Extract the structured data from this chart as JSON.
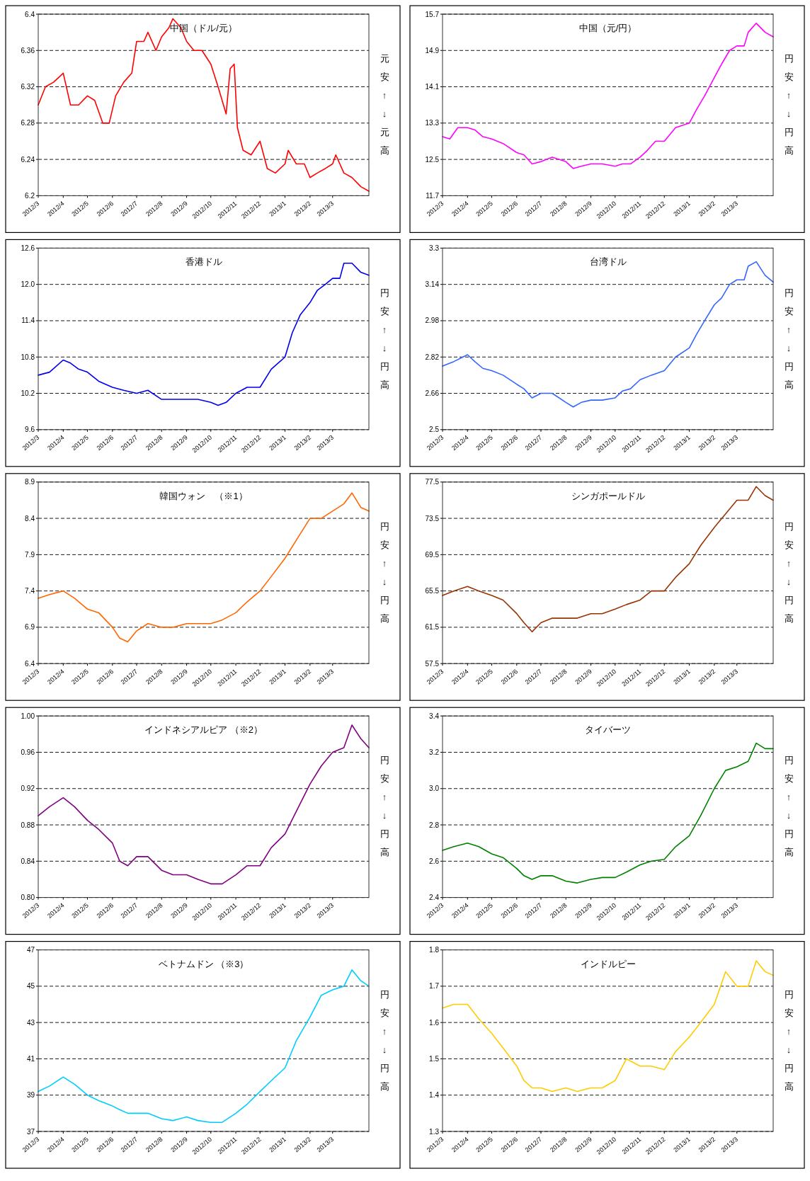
{
  "chart_data": [
    {
      "type": "line",
      "title": "中国（ドル/元）",
      "annotations": [
        "元安↑↓元高"
      ],
      "grid": "y",
      "xlim": [
        "2012-03-01",
        "2013-04-15"
      ],
      "ylim": [
        6.2,
        6.4
      ],
      "yticks": [
        6.2,
        6.24,
        6.28,
        6.32,
        6.36,
        6.4
      ],
      "xticks": [
        {
          "value": "2012-03-01",
          "label": "2012/3"
        },
        {
          "value": "2012-04-01",
          "label": "2012/4"
        },
        {
          "value": "2012-05-01",
          "label": "2012/5"
        },
        {
          "value": "2012-06-01",
          "label": "2012/6"
        },
        {
          "value": "2012-07-01",
          "label": "2012/7"
        },
        {
          "value": "2012-08-01",
          "label": "2012/8"
        },
        {
          "value": "2012-09-01",
          "label": "2012/9"
        },
        {
          "value": "2012-10-01",
          "label": "2012/10"
        },
        {
          "value": "2012-11-01",
          "label": "2012/11"
        },
        {
          "value": "2012-12-01",
          "label": "2012/12"
        },
        {
          "value": "2013-01-01",
          "label": "2013/1"
        },
        {
          "value": "2013-02-01",
          "label": "2013/2"
        },
        {
          "value": "2013-03-01",
          "label": "2013/3"
        }
      ],
      "x": [
        "2012-03-01",
        "2012-03-10",
        "2012-03-20",
        "2012-04-01",
        "2012-04-10",
        "2012-04-20",
        "2012-05-01",
        "2012-05-10",
        "2012-05-20",
        "2012-05-28",
        "2012-06-05",
        "2012-06-15",
        "2012-06-25",
        "2012-07-01",
        "2012-07-10",
        "2012-07-15",
        "2012-07-25",
        "2012-08-01",
        "2012-08-10",
        "2012-08-15",
        "2012-08-25",
        "2012-09-01",
        "2012-09-10",
        "2012-09-20",
        "2012-10-01",
        "2012-10-10",
        "2012-10-20",
        "2012-10-25",
        "2012-10-30",
        "2012-11-03",
        "2012-11-10",
        "2012-11-20",
        "2012-12-01",
        "2012-12-10",
        "2012-12-20",
        "2013-01-01",
        "2013-01-05",
        "2013-01-15",
        "2013-01-25",
        "2013-02-01",
        "2013-02-10",
        "2013-02-20",
        "2013-03-01",
        "2013-03-05",
        "2013-03-15",
        "2013-03-25",
        "2013-04-05",
        "2013-04-15"
      ],
      "series": [
        {
          "color": "#ff0000",
          "values": [
            6.3,
            6.32,
            6.325,
            6.335,
            6.3,
            6.3,
            6.31,
            6.305,
            6.28,
            6.28,
            6.31,
            6.325,
            6.335,
            6.37,
            6.37,
            6.38,
            6.36,
            6.375,
            6.385,
            6.395,
            6.385,
            6.37,
            6.36,
            6.36,
            6.345,
            6.32,
            6.29,
            6.34,
            6.345,
            6.275,
            6.25,
            6.245,
            6.26,
            6.23,
            6.225,
            6.235,
            6.25,
            6.235,
            6.235,
            6.22,
            6.225,
            6.23,
            6.235,
            6.245,
            6.225,
            6.22,
            6.21,
            6.205
          ]
        }
      ]
    },
    {
      "type": "line",
      "title": "中国（元/円）",
      "annotations": [
        "円安↑↓円高"
      ],
      "grid": "y",
      "xlim": [
        "2012-03-01",
        "2013-04-15"
      ],
      "ylim": [
        11.7,
        15.7
      ],
      "yticks": [
        11.7,
        12.5,
        13.3,
        14.1,
        14.9,
        15.7
      ],
      "xticks": [
        {
          "value": "2012-03-01",
          "label": "2012/3"
        },
        {
          "value": "2012-04-01",
          "label": "2012/4"
        },
        {
          "value": "2012-05-01",
          "label": "2012/5"
        },
        {
          "value": "2012-06-01",
          "label": "2012/6"
        },
        {
          "value": "2012-07-01",
          "label": "2012/7"
        },
        {
          "value": "2012-08-01",
          "label": "2012/8"
        },
        {
          "value": "2012-09-01",
          "label": "2012/9"
        },
        {
          "value": "2012-10-01",
          "label": "2012/10"
        },
        {
          "value": "2012-11-01",
          "label": "2012/11"
        },
        {
          "value": "2012-12-01",
          "label": "2012/12"
        },
        {
          "value": "2013-01-01",
          "label": "2013/1"
        },
        {
          "value": "2013-02-01",
          "label": "2013/2"
        },
        {
          "value": "2013-03-01",
          "label": "2013/3"
        }
      ],
      "x": [
        "2012-03-01",
        "2012-03-10",
        "2012-03-20",
        "2012-04-01",
        "2012-04-10",
        "2012-04-20",
        "2012-05-01",
        "2012-05-15",
        "2012-06-01",
        "2012-06-10",
        "2012-06-20",
        "2012-07-01",
        "2012-07-15",
        "2012-08-01",
        "2012-08-10",
        "2012-08-20",
        "2012-09-01",
        "2012-09-15",
        "2012-10-01",
        "2012-10-10",
        "2012-10-20",
        "2012-11-01",
        "2012-11-10",
        "2012-11-20",
        "2012-12-01",
        "2012-12-15",
        "2013-01-01",
        "2013-01-10",
        "2013-01-20",
        "2013-02-01",
        "2013-02-10",
        "2013-02-20",
        "2013-03-01",
        "2013-03-10",
        "2013-03-15",
        "2013-03-25",
        "2013-04-05",
        "2013-04-15"
      ],
      "series": [
        {
          "color": "#ff00ff",
          "values": [
            13.0,
            12.95,
            13.2,
            13.2,
            13.15,
            13.0,
            12.95,
            12.85,
            12.65,
            12.6,
            12.4,
            12.45,
            12.55,
            12.45,
            12.3,
            12.35,
            12.4,
            12.4,
            12.35,
            12.4,
            12.4,
            12.55,
            12.7,
            12.9,
            12.9,
            13.2,
            13.3,
            13.6,
            13.9,
            14.3,
            14.6,
            14.9,
            15.0,
            15.0,
            15.3,
            15.5,
            15.3,
            15.2
          ]
        }
      ]
    },
    {
      "type": "line",
      "title": "香港ドル",
      "annotations": [
        "円安↑↓円高"
      ],
      "grid": "y",
      "xlim": [
        "2012-03-01",
        "2013-04-15"
      ],
      "ylim": [
        9.6,
        12.6
      ],
      "yticks": [
        9.6,
        10.2,
        10.8,
        11.4,
        {
          "value": 12,
          "label": "12.0"
        },
        12.6
      ],
      "xticks": [
        {
          "value": "2012-03-01",
          "label": "2012/3"
        },
        {
          "value": "2012-04-01",
          "label": "2012/4"
        },
        {
          "value": "2012-05-01",
          "label": "2012/5"
        },
        {
          "value": "2012-06-01",
          "label": "2012/6"
        },
        {
          "value": "2012-07-01",
          "label": "2012/7"
        },
        {
          "value": "2012-08-01",
          "label": "2012/8"
        },
        {
          "value": "2012-09-01",
          "label": "2012/9"
        },
        {
          "value": "2012-10-01",
          "label": "2012/10"
        },
        {
          "value": "2012-11-01",
          "label": "2012/11"
        },
        {
          "value": "2012-12-01",
          "label": "2012/12"
        },
        {
          "value": "2013-01-01",
          "label": "2013/1"
        },
        {
          "value": "2013-02-01",
          "label": "2013/2"
        },
        {
          "value": "2013-03-01",
          "label": "2013/3"
        }
      ],
      "x": [
        "2012-03-01",
        "2012-03-15",
        "2012-04-01",
        "2012-04-10",
        "2012-04-20",
        "2012-05-01",
        "2012-05-15",
        "2012-06-01",
        "2012-06-15",
        "2012-07-01",
        "2012-07-15",
        "2012-08-01",
        "2012-08-15",
        "2012-09-01",
        "2012-09-15",
        "2012-10-01",
        "2012-10-10",
        "2012-10-20",
        "2012-11-01",
        "2012-11-15",
        "2012-12-01",
        "2012-12-15",
        "2013-01-01",
        "2013-01-10",
        "2013-01-20",
        "2013-02-01",
        "2013-02-10",
        "2013-02-20",
        "2013-03-01",
        "2013-03-10",
        "2013-03-15",
        "2013-03-25",
        "2013-04-05",
        "2013-04-15"
      ],
      "series": [
        {
          "color": "#0000ee",
          "values": [
            10.5,
            10.55,
            10.75,
            10.7,
            10.6,
            10.55,
            10.4,
            10.3,
            10.25,
            10.2,
            10.25,
            10.1,
            10.1,
            10.1,
            10.1,
            10.05,
            10.0,
            10.05,
            10.2,
            10.3,
            10.3,
            10.6,
            10.8,
            11.2,
            11.5,
            11.7,
            11.9,
            12.0,
            12.1,
            12.1,
            12.35,
            12.35,
            12.2,
            12.15
          ]
        }
      ]
    },
    {
      "type": "line",
      "title": "台湾ドル",
      "annotations": [
        "円安↑↓円高"
      ],
      "grid": "y",
      "xlim": [
        "2012-03-01",
        "2013-04-15"
      ],
      "ylim": [
        2.5,
        3.3
      ],
      "yticks": [
        2.5,
        2.66,
        2.82,
        2.98,
        3.14,
        3.3
      ],
      "xticks": [
        {
          "value": "2012-03-01",
          "label": "2012/3"
        },
        {
          "value": "2012-04-01",
          "label": "2012/4"
        },
        {
          "value": "2012-05-01",
          "label": "2012/5"
        },
        {
          "value": "2012-06-01",
          "label": "2012/6"
        },
        {
          "value": "2012-07-01",
          "label": "2012/7"
        },
        {
          "value": "2012-08-01",
          "label": "2012/8"
        },
        {
          "value": "2012-09-01",
          "label": "2012/9"
        },
        {
          "value": "2012-10-01",
          "label": "2012/10"
        },
        {
          "value": "2012-11-01",
          "label": "2012/11"
        },
        {
          "value": "2012-12-01",
          "label": "2012/12"
        },
        {
          "value": "2013-01-01",
          "label": "2013/1"
        },
        {
          "value": "2013-02-01",
          "label": "2013/2"
        },
        {
          "value": "2013-03-01",
          "label": "2013/3"
        }
      ],
      "x": [
        "2012-03-01",
        "2012-03-15",
        "2012-04-01",
        "2012-04-10",
        "2012-04-20",
        "2012-05-01",
        "2012-05-15",
        "2012-06-01",
        "2012-06-10",
        "2012-06-20",
        "2012-07-01",
        "2012-07-15",
        "2012-08-01",
        "2012-08-10",
        "2012-08-20",
        "2012-09-01",
        "2012-09-15",
        "2012-10-01",
        "2012-10-10",
        "2012-10-20",
        "2012-11-01",
        "2012-11-15",
        "2012-12-01",
        "2012-12-15",
        "2013-01-01",
        "2013-01-10",
        "2013-01-20",
        "2013-02-01",
        "2013-02-10",
        "2013-02-20",
        "2013-03-01",
        "2013-03-10",
        "2013-03-15",
        "2013-03-25",
        "2013-04-05",
        "2013-04-15"
      ],
      "series": [
        {
          "color": "#3366ff",
          "values": [
            2.78,
            2.8,
            2.83,
            2.8,
            2.77,
            2.76,
            2.74,
            2.7,
            2.68,
            2.64,
            2.66,
            2.66,
            2.62,
            2.6,
            2.62,
            2.63,
            2.63,
            2.64,
            2.67,
            2.68,
            2.72,
            2.74,
            2.76,
            2.82,
            2.86,
            2.92,
            2.98,
            3.05,
            3.08,
            3.14,
            3.16,
            3.16,
            3.22,
            3.24,
            3.18,
            3.15
          ]
        }
      ]
    },
    {
      "type": "line",
      "title": "韓国ウォン　（※1）",
      "annotations": [
        "円安↑↓円高"
      ],
      "grid": "y",
      "xlim": [
        "2012-03-01",
        "2013-04-15"
      ],
      "ylim": [
        6.4,
        8.9
      ],
      "yticks": [
        6.4,
        6.9,
        7.4,
        7.9,
        8.4,
        8.9
      ],
      "xticks": [
        {
          "value": "2012-03-01",
          "label": "2012/3"
        },
        {
          "value": "2012-04-01",
          "label": "2012/4"
        },
        {
          "value": "2012-05-01",
          "label": "2012/5"
        },
        {
          "value": "2012-06-01",
          "label": "2012/6"
        },
        {
          "value": "2012-07-01",
          "label": "2012/7"
        },
        {
          "value": "2012-08-01",
          "label": "2012/8"
        },
        {
          "value": "2012-09-01",
          "label": "2012/9"
        },
        {
          "value": "2012-10-01",
          "label": "2012/10"
        },
        {
          "value": "2012-11-01",
          "label": "2012/11"
        },
        {
          "value": "2012-12-01",
          "label": "2012/12"
        },
        {
          "value": "2013-01-01",
          "label": "2013/1"
        },
        {
          "value": "2013-02-01",
          "label": "2013/2"
        },
        {
          "value": "2013-03-01",
          "label": "2013/3"
        }
      ],
      "x": [
        "2012-03-01",
        "2012-03-15",
        "2012-04-01",
        "2012-04-15",
        "2012-05-01",
        "2012-05-15",
        "2012-06-01",
        "2012-06-10",
        "2012-06-20",
        "2012-07-01",
        "2012-07-15",
        "2012-08-01",
        "2012-08-15",
        "2012-09-01",
        "2012-09-15",
        "2012-10-01",
        "2012-10-15",
        "2012-11-01",
        "2012-11-15",
        "2012-12-01",
        "2012-12-15",
        "2013-01-01",
        "2013-01-15",
        "2013-02-01",
        "2013-02-15",
        "2013-03-01",
        "2013-03-15",
        "2013-03-25",
        "2013-04-05",
        "2013-04-15"
      ],
      "series": [
        {
          "color": "#ff6600",
          "values": [
            7.3,
            7.35,
            7.4,
            7.3,
            7.15,
            7.1,
            6.9,
            6.75,
            6.7,
            6.85,
            6.95,
            6.9,
            6.9,
            6.95,
            6.95,
            6.95,
            7.0,
            7.1,
            7.25,
            7.4,
            7.6,
            7.85,
            8.1,
            8.4,
            8.4,
            8.5,
            8.6,
            8.75,
            8.55,
            8.5
          ]
        }
      ]
    },
    {
      "type": "line",
      "title": "シンガポールドル",
      "annotations": [
        "円安↑↓円高"
      ],
      "grid": "y",
      "xlim": [
        "2012-03-01",
        "2013-04-15"
      ],
      "ylim": [
        57.5,
        77.5
      ],
      "yticks": [
        57.5,
        61.5,
        65.5,
        69.5,
        73.5,
        77.5
      ],
      "xticks": [
        {
          "value": "2012-03-01",
          "label": "2012/3"
        },
        {
          "value": "2012-04-01",
          "label": "2012/4"
        },
        {
          "value": "2012-05-01",
          "label": "2012/5"
        },
        {
          "value": "2012-06-01",
          "label": "2012/6"
        },
        {
          "value": "2012-07-01",
          "label": "2012/7"
        },
        {
          "value": "2012-08-01",
          "label": "2012/8"
        },
        {
          "value": "2012-09-01",
          "label": "2012/9"
        },
        {
          "value": "2012-10-01",
          "label": "2012/10"
        },
        {
          "value": "2012-11-01",
          "label": "2012/11"
        },
        {
          "value": "2012-12-01",
          "label": "2012/12"
        },
        {
          "value": "2013-01-01",
          "label": "2013/1"
        },
        {
          "value": "2013-02-01",
          "label": "2013/2"
        },
        {
          "value": "2013-03-01",
          "label": "2013/3"
        }
      ],
      "x": [
        "2012-03-01",
        "2012-03-15",
        "2012-04-01",
        "2012-04-15",
        "2012-05-01",
        "2012-05-15",
        "2012-06-01",
        "2012-06-10",
        "2012-06-20",
        "2012-07-01",
        "2012-07-15",
        "2012-08-01",
        "2012-08-15",
        "2012-09-01",
        "2012-09-15",
        "2012-10-01",
        "2012-10-15",
        "2012-11-01",
        "2012-11-15",
        "2012-12-01",
        "2012-12-15",
        "2013-01-01",
        "2013-01-15",
        "2013-02-01",
        "2013-02-15",
        "2013-03-01",
        "2013-03-15",
        "2013-03-25",
        "2013-04-05",
        "2013-04-15"
      ],
      "series": [
        {
          "color": "#993300",
          "values": [
            65.0,
            65.5,
            66.0,
            65.5,
            65.0,
            64.5,
            63.0,
            62.0,
            61.0,
            62.0,
            62.5,
            62.5,
            62.5,
            63.0,
            63.0,
            63.5,
            64.0,
            64.5,
            65.5,
            65.5,
            67.0,
            68.5,
            70.5,
            72.5,
            74.0,
            75.5,
            75.5,
            77.0,
            76.0,
            75.5
          ]
        }
      ]
    },
    {
      "type": "line",
      "title": "インドネシアルピア （※2）",
      "annotations": [
        "円安↑↓円高"
      ],
      "grid": "y",
      "xlim": [
        "2012-03-01",
        "2013-04-15"
      ],
      "ylim": [
        0.8,
        1.0
      ],
      "yticks": [
        {
          "value": 0.8,
          "label": "0.80"
        },
        0.84,
        0.88,
        0.92,
        0.96,
        {
          "value": 1,
          "label": "1.00"
        }
      ],
      "xticks": [
        {
          "value": "2012-03-01",
          "label": "2012/3"
        },
        {
          "value": "2012-04-01",
          "label": "2012/4"
        },
        {
          "value": "2012-05-01",
          "label": "2012/5"
        },
        {
          "value": "2012-06-01",
          "label": "2012/6"
        },
        {
          "value": "2012-07-01",
          "label": "2012/7"
        },
        {
          "value": "2012-08-01",
          "label": "2012/8"
        },
        {
          "value": "2012-09-01",
          "label": "2012/9"
        },
        {
          "value": "2012-10-01",
          "label": "2012/10"
        },
        {
          "value": "2012-11-01",
          "label": "2012/11"
        },
        {
          "value": "2012-12-01",
          "label": "2012/12"
        },
        {
          "value": "2013-01-01",
          "label": "2013/1"
        },
        {
          "value": "2013-02-01",
          "label": "2013/2"
        },
        {
          "value": "2013-03-01",
          "label": "2013/3"
        }
      ],
      "x": [
        "2012-03-01",
        "2012-03-15",
        "2012-04-01",
        "2012-04-15",
        "2012-05-01",
        "2012-05-15",
        "2012-06-01",
        "2012-06-10",
        "2012-06-20",
        "2012-07-01",
        "2012-07-15",
        "2012-08-01",
        "2012-08-15",
        "2012-09-01",
        "2012-09-15",
        "2012-10-01",
        "2012-10-15",
        "2012-11-01",
        "2012-11-15",
        "2012-12-01",
        "2012-12-15",
        "2013-01-01",
        "2013-01-15",
        "2013-02-01",
        "2013-02-15",
        "2013-03-01",
        "2013-03-15",
        "2013-03-25",
        "2013-04-05",
        "2013-04-15"
      ],
      "series": [
        {
          "color": "#800080",
          "values": [
            0.89,
            0.9,
            0.91,
            0.9,
            0.885,
            0.875,
            0.86,
            0.84,
            0.835,
            0.845,
            0.845,
            0.83,
            0.825,
            0.825,
            0.82,
            0.815,
            0.815,
            0.825,
            0.835,
            0.835,
            0.855,
            0.87,
            0.895,
            0.925,
            0.945,
            0.96,
            0.965,
            0.99,
            0.975,
            0.965
          ]
        }
      ]
    },
    {
      "type": "line",
      "title": "タイバーツ",
      "annotations": [
        "円安↑↓円高"
      ],
      "grid": "y",
      "xlim": [
        "2012-03-01",
        "2013-04-15"
      ],
      "ylim": [
        2.4,
        3.4
      ],
      "yticks": [
        2.4,
        2.6,
        2.8,
        {
          "value": 3,
          "label": "3.0"
        },
        3.2,
        3.4
      ],
      "xticks": [
        {
          "value": "2012-03-01",
          "label": "2012/3"
        },
        {
          "value": "2012-04-01",
          "label": "2012/4"
        },
        {
          "value": "2012-05-01",
          "label": "2012/5"
        },
        {
          "value": "2012-06-01",
          "label": "2012/6"
        },
        {
          "value": "2012-07-01",
          "label": "2012/7"
        },
        {
          "value": "2012-08-01",
          "label": "2012/8"
        },
        {
          "value": "2012-09-01",
          "label": "2012/9"
        },
        {
          "value": "2012-10-01",
          "label": "2012/10"
        },
        {
          "value": "2012-11-01",
          "label": "2012/11"
        },
        {
          "value": "2012-12-01",
          "label": "2012/12"
        },
        {
          "value": "2013-01-01",
          "label": "2013/1"
        },
        {
          "value": "2013-02-01",
          "label": "2013/2"
        },
        {
          "value": "2013-03-01",
          "label": "2013/3"
        }
      ],
      "x": [
        "2012-03-01",
        "2012-03-15",
        "2012-04-01",
        "2012-04-15",
        "2012-05-01",
        "2012-05-15",
        "2012-06-01",
        "2012-06-10",
        "2012-06-20",
        "2012-07-01",
        "2012-07-15",
        "2012-08-01",
        "2012-08-15",
        "2012-09-01",
        "2012-09-15",
        "2012-10-01",
        "2012-10-15",
        "2012-11-01",
        "2012-11-15",
        "2012-12-01",
        "2012-12-15",
        "2013-01-01",
        "2013-01-15",
        "2013-02-01",
        "2013-02-15",
        "2013-03-01",
        "2013-03-15",
        "2013-03-25",
        "2013-04-05",
        "2013-04-15"
      ],
      "series": [
        {
          "color": "#008000",
          "values": [
            2.66,
            2.68,
            2.7,
            2.68,
            2.64,
            2.62,
            2.56,
            2.52,
            2.5,
            2.52,
            2.52,
            2.49,
            2.48,
            2.5,
            2.51,
            2.51,
            2.54,
            2.58,
            2.6,
            2.61,
            2.68,
            2.74,
            2.85,
            3.0,
            3.1,
            3.12,
            3.15,
            3.25,
            3.22,
            3.22
          ]
        }
      ]
    },
    {
      "type": "line",
      "title": "ベトナムドン （※3）",
      "annotations": [
        "円安↑↓円高"
      ],
      "grid": "y",
      "xlim": [
        "2012-03-01",
        "2013-04-15"
      ],
      "ylim": [
        37,
        47
      ],
      "yticks": [
        37,
        39,
        41,
        43,
        45,
        47
      ],
      "xticks": [
        {
          "value": "2012-03-01",
          "label": "2012/3"
        },
        {
          "value": "2012-04-01",
          "label": "2012/4"
        },
        {
          "value": "2012-05-01",
          "label": "2012/5"
        },
        {
          "value": "2012-06-01",
          "label": "2012/6"
        },
        {
          "value": "2012-07-01",
          "label": "2012/7"
        },
        {
          "value": "2012-08-01",
          "label": "2012/8"
        },
        {
          "value": "2012-09-01",
          "label": "2012/9"
        },
        {
          "value": "2012-10-01",
          "label": "2012/10"
        },
        {
          "value": "2012-11-01",
          "label": "2012/11"
        },
        {
          "value": "2012-12-01",
          "label": "2012/12"
        },
        {
          "value": "2013-01-01",
          "label": "2013/1"
        },
        {
          "value": "2013-02-01",
          "label": "2013/2"
        },
        {
          "value": "2013-03-01",
          "label": "2013/3"
        }
      ],
      "x": [
        "2012-03-01",
        "2012-03-15",
        "2012-04-01",
        "2012-04-15",
        "2012-05-01",
        "2012-05-15",
        "2012-06-01",
        "2012-06-10",
        "2012-06-20",
        "2012-07-01",
        "2012-07-15",
        "2012-08-01",
        "2012-08-15",
        "2012-09-01",
        "2012-09-15",
        "2012-10-01",
        "2012-10-15",
        "2012-11-01",
        "2012-11-15",
        "2012-12-01",
        "2012-12-15",
        "2013-01-01",
        "2013-01-15",
        "2013-02-01",
        "2013-02-15",
        "2013-03-01",
        "2013-03-15",
        "2013-03-25",
        "2013-04-05",
        "2013-04-15"
      ],
      "series": [
        {
          "color": "#00ccff",
          "values": [
            39.2,
            39.5,
            40.0,
            39.6,
            39.0,
            38.7,
            38.4,
            38.2,
            38.0,
            38.0,
            38.0,
            37.7,
            37.6,
            37.8,
            37.6,
            37.5,
            37.5,
            38.0,
            38.5,
            39.2,
            39.8,
            40.5,
            42.0,
            43.3,
            44.5,
            44.8,
            45.0,
            45.9,
            45.3,
            45.0
          ]
        }
      ]
    },
    {
      "type": "line",
      "title": "インドルピー",
      "annotations": [
        "円安↑↓円高"
      ],
      "grid": "y",
      "xlim": [
        "2012-03-01",
        "2013-04-15"
      ],
      "ylim": [
        1.3,
        1.8
      ],
      "yticks": [
        1.3,
        1.4,
        1.5,
        1.6,
        1.7,
        1.8
      ],
      "xticks": [
        {
          "value": "2012-03-01",
          "label": "2012/3"
        },
        {
          "value": "2012-04-01",
          "label": "2012/4"
        },
        {
          "value": "2012-05-01",
          "label": "2012/5"
        },
        {
          "value": "2012-06-01",
          "label": "2012/6"
        },
        {
          "value": "2012-07-01",
          "label": "2012/7"
        },
        {
          "value": "2012-08-01",
          "label": "2012/8"
        },
        {
          "value": "2012-09-01",
          "label": "2012/9"
        },
        {
          "value": "2012-10-01",
          "label": "2012/10"
        },
        {
          "value": "2012-11-01",
          "label": "2012/11"
        },
        {
          "value": "2012-12-01",
          "label": "2012/12"
        },
        {
          "value": "2013-01-01",
          "label": "2013/1"
        },
        {
          "value": "2013-02-01",
          "label": "2013/2"
        },
        {
          "value": "2013-03-01",
          "label": "2013/3"
        }
      ],
      "x": [
        "2012-03-01",
        "2012-03-15",
        "2012-04-01",
        "2012-04-15",
        "2012-05-01",
        "2012-05-15",
        "2012-06-01",
        "2012-06-10",
        "2012-06-20",
        "2012-07-01",
        "2012-07-15",
        "2012-08-01",
        "2012-08-15",
        "2012-09-01",
        "2012-09-15",
        "2012-10-01",
        "2012-10-15",
        "2012-11-01",
        "2012-11-15",
        "2012-12-01",
        "2012-12-15",
        "2013-01-01",
        "2013-01-15",
        "2013-02-01",
        "2013-02-15",
        "2013-03-01",
        "2013-03-15",
        "2013-03-25",
        "2013-04-05",
        "2013-04-15"
      ],
      "series": [
        {
          "color": "#ffcc00",
          "values": [
            1.64,
            1.65,
            1.65,
            1.61,
            1.57,
            1.53,
            1.48,
            1.44,
            1.42,
            1.42,
            1.41,
            1.42,
            1.41,
            1.42,
            1.42,
            1.44,
            1.5,
            1.48,
            1.48,
            1.47,
            1.52,
            1.56,
            1.6,
            1.65,
            1.74,
            1.7,
            1.7,
            1.77,
            1.74,
            1.73
          ]
        }
      ]
    }
  ]
}
